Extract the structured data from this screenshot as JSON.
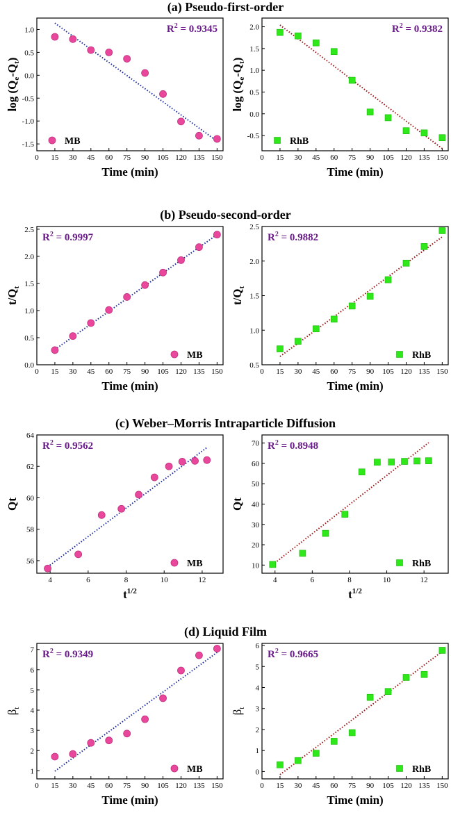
{
  "sections": [
    {
      "title": "(a) Pseudo-first-order"
    },
    {
      "title": "(b) Pseudo-second-order"
    },
    {
      "title": "(c) Weber–Morris Intraparticle Diffusion"
    },
    {
      "title": "(d) Liquid Film"
    }
  ],
  "colors": {
    "mb": "#e8479c",
    "rhb": "#2ee81a",
    "mb_fit": "#1c2a9c",
    "rhb_fit": "#9c1414",
    "r2": "#6a1b8a"
  },
  "chart_data": [
    {
      "id": "a-mb",
      "type": "scatter",
      "xlabel": "Time (min)",
      "ylabel": "log (Qe-Qt)",
      "xlim": [
        0,
        155
      ],
      "ylim": [
        -1.65,
        1.25
      ],
      "xticks": [
        0,
        15,
        30,
        45,
        60,
        75,
        90,
        105,
        120,
        135,
        150
      ],
      "yticks": [
        -1.5,
        -1.0,
        -0.5,
        0.0,
        0.5,
        1.0
      ],
      "ytick_labels": [
        "-1.5",
        "-1.0",
        "-0.5",
        "0.0",
        "0.5",
        "1.0"
      ],
      "series": [
        {
          "name": "MB",
          "marker": "circle",
          "x": [
            15,
            30,
            45,
            60,
            75,
            90,
            105,
            120,
            135,
            150
          ],
          "y": [
            0.84,
            0.79,
            0.55,
            0.5,
            0.36,
            0.05,
            -0.41,
            -1.01,
            -1.32,
            -1.39
          ]
        }
      ],
      "fit": {
        "x": [
          15,
          150
        ],
        "y": [
          1.14,
          -1.44
        ]
      },
      "r2": "= 0.9345",
      "legend": "bottom-left"
    },
    {
      "id": "a-rhb",
      "type": "scatter",
      "xlabel": "Time (min)",
      "ylabel": "log (Qe-Qt)",
      "xlim": [
        0,
        155
      ],
      "ylim": [
        -0.85,
        2.2
      ],
      "xticks": [
        0,
        15,
        30,
        45,
        60,
        75,
        90,
        105,
        120,
        135,
        150
      ],
      "yticks": [
        -0.5,
        0.0,
        0.5,
        1.0,
        1.5,
        2.0
      ],
      "ytick_labels": [
        "-0.5",
        "0.0",
        "0.5",
        "1.0",
        "1.5",
        "2.0"
      ],
      "series": [
        {
          "name": "RhB",
          "marker": "square",
          "x": [
            15,
            30,
            45,
            60,
            75,
            90,
            105,
            120,
            135,
            150
          ],
          "y": [
            1.87,
            1.79,
            1.63,
            1.43,
            0.77,
            0.04,
            -0.09,
            -0.39,
            -0.44,
            -0.55
          ]
        }
      ],
      "fit": {
        "x": [
          15,
          150
        ],
        "y": [
          2.04,
          -0.8
        ]
      },
      "r2": "= 0.9382",
      "legend": "bottom-left"
    },
    {
      "id": "b-mb",
      "type": "scatter",
      "xlabel": "Time (min)",
      "ylabel": "t/Qt",
      "xlim": [
        0,
        155
      ],
      "ylim": [
        0,
        2.55
      ],
      "xticks": [
        0,
        15,
        30,
        45,
        60,
        75,
        90,
        105,
        120,
        135,
        150
      ],
      "yticks": [
        0.0,
        0.5,
        1.0,
        1.5,
        2.0,
        2.5
      ],
      "ytick_labels": [
        "0.0",
        "0.5",
        "1.0",
        "1.5",
        "2.0",
        "2.5"
      ],
      "series": [
        {
          "name": "MB",
          "marker": "circle",
          "x": [
            15,
            30,
            45,
            60,
            75,
            90,
            105,
            120,
            135,
            150
          ],
          "y": [
            0.27,
            0.53,
            0.77,
            1.01,
            1.25,
            1.47,
            1.7,
            1.93,
            2.17,
            2.4
          ]
        }
      ],
      "fit": {
        "x": [
          15,
          150
        ],
        "y": [
          0.28,
          2.4
        ]
      },
      "r2": "= 0.9997",
      "legend": "bottom-right"
    },
    {
      "id": "b-rhb",
      "type": "scatter",
      "xlabel": "Time (min)",
      "ylabel": "t/Qt",
      "xlim": [
        0,
        155
      ],
      "ylim": [
        0.5,
        2.5
      ],
      "xticks": [
        0,
        15,
        30,
        45,
        60,
        75,
        90,
        105,
        120,
        135,
        150
      ],
      "yticks": [
        0.5,
        1.0,
        1.5,
        2.0,
        2.5
      ],
      "ytick_labels": [
        "0.5",
        "1.0",
        "1.5",
        "2.0",
        "2.5"
      ],
      "series": [
        {
          "name": "RhB",
          "marker": "square",
          "x": [
            15,
            30,
            45,
            60,
            75,
            90,
            105,
            120,
            135,
            150
          ],
          "y": [
            0.73,
            0.84,
            1.02,
            1.16,
            1.35,
            1.49,
            1.73,
            1.97,
            2.21,
            2.44
          ]
        }
      ],
      "fit": {
        "x": [
          15,
          150
        ],
        "y": [
          0.62,
          2.35
        ]
      },
      "r2": "= 0.9882",
      "legend": "bottom-right"
    },
    {
      "id": "c-mb",
      "type": "scatter",
      "xlabel": "t1/2",
      "ylabel": "Qt",
      "xlim": [
        3.3,
        13.1
      ],
      "ylim": [
        55.2,
        64
      ],
      "xticks": [
        4,
        6,
        8,
        10,
        12
      ],
      "yticks": [
        56,
        58,
        60,
        62,
        64
      ],
      "ytick_labels": [
        "56",
        "58",
        "60",
        "62",
        "64"
      ],
      "series": [
        {
          "name": "MB",
          "marker": "circle",
          "x": [
            3.87,
            5.48,
            6.71,
            7.75,
            8.66,
            9.49,
            10.25,
            10.95,
            11.62,
            12.25
          ],
          "y": [
            55.5,
            56.4,
            58.9,
            59.3,
            60.2,
            61.3,
            62.0,
            62.3,
            62.35,
            62.4
          ]
        }
      ],
      "fit": {
        "x": [
          3.87,
          12.25
        ],
        "y": [
          55.6,
          63.2
        ]
      },
      "r2": "= 0.9562",
      "legend": "bottom-right"
    },
    {
      "id": "c-rhb",
      "type": "scatter",
      "xlabel": "t1/2",
      "ylabel": "Qt",
      "xlim": [
        3.3,
        13.3
      ],
      "ylim": [
        6,
        74
      ],
      "xticks": [
        4,
        6,
        8,
        10,
        12
      ],
      "yticks": [
        10,
        20,
        30,
        40,
        50,
        60,
        70
      ],
      "ytick_labels": [
        "10",
        "20",
        "30",
        "40",
        "50",
        "60",
        "70"
      ],
      "series": [
        {
          "name": "RhB",
          "marker": "square",
          "x": [
            3.87,
            5.48,
            6.71,
            7.75,
            8.66,
            9.49,
            10.25,
            10.95,
            11.62,
            12.25
          ],
          "y": [
            10.3,
            15.8,
            25.6,
            35.0,
            55.8,
            60.6,
            60.7,
            61.0,
            61.2,
            61.3
          ]
        }
      ],
      "fit": {
        "x": [
          3.87,
          12.25
        ],
        "y": [
          10.2,
          70.2
        ]
      },
      "r2": "= 0.8948",
      "legend": "bottom-right"
    },
    {
      "id": "d-mb",
      "type": "scatter",
      "xlabel": "Time (min)",
      "ylabel": "βt",
      "xlim": [
        0,
        155
      ],
      "ylim": [
        0.6,
        7.3
      ],
      "xticks": [
        0,
        15,
        30,
        45,
        60,
        75,
        90,
        105,
        120,
        135,
        150
      ],
      "yticks": [
        1,
        2,
        3,
        4,
        5,
        6,
        7
      ],
      "ytick_labels": [
        "1",
        "2",
        "3",
        "4",
        "5",
        "6",
        "7"
      ],
      "series": [
        {
          "name": "MB",
          "marker": "circle",
          "x": [
            15,
            30,
            45,
            60,
            75,
            90,
            105,
            120,
            135,
            150
          ],
          "y": [
            1.7,
            1.83,
            2.38,
            2.5,
            2.84,
            3.55,
            4.59,
            5.96,
            6.71,
            7.04
          ]
        }
      ],
      "fit": {
        "x": [
          15,
          150
        ],
        "y": [
          0.98,
          6.85
        ]
      },
      "r2": "= 0.9349",
      "legend": "bottom-right"
    },
    {
      "id": "d-rhb",
      "type": "scatter",
      "xlabel": "Time (min)",
      "ylabel": "βt",
      "xlim": [
        0,
        155
      ],
      "ylim": [
        -0.35,
        6.1
      ],
      "xticks": [
        0,
        15,
        30,
        45,
        60,
        75,
        90,
        105,
        120,
        135,
        150
      ],
      "yticks": [
        0,
        1,
        2,
        3,
        4,
        5,
        6
      ],
      "ytick_labels": [
        "0",
        "1",
        "2",
        "3",
        "4",
        "5",
        "6"
      ],
      "series": [
        {
          "name": "RhB",
          "marker": "square",
          "x": [
            15,
            30,
            45,
            60,
            75,
            90,
            105,
            120,
            135,
            150
          ],
          "y": [
            0.32,
            0.52,
            0.87,
            1.44,
            1.85,
            3.53,
            3.81,
            4.48,
            4.62,
            5.77
          ]
        }
      ],
      "fit": {
        "x": [
          15,
          150
        ],
        "y": [
          -0.15,
          5.72
        ]
      },
      "r2": "= 0.9665",
      "legend": "bottom-right"
    }
  ]
}
